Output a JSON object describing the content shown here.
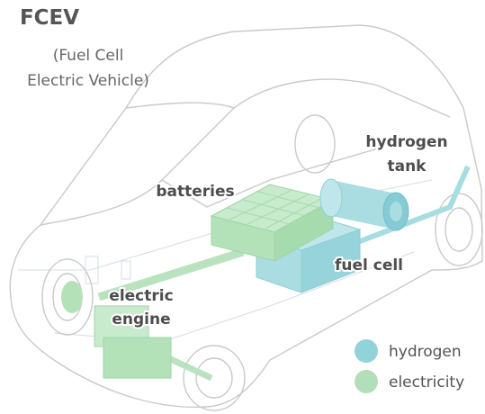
{
  "header": {
    "title": "FCEV",
    "subtitle": [
      "(Fuel Cell",
      "Electric Vehicle)"
    ]
  },
  "labels": [
    {
      "lines": [
        "hydrogen",
        "tank"
      ]
    },
    {
      "lines": [
        "batteries"
      ]
    },
    {
      "lines": [
        "fuel cell"
      ]
    },
    {
      "lines": [
        "electric",
        "engine"
      ]
    }
  ],
  "legend": [
    {
      "label": "hydrogen",
      "color": "#7ccbd2"
    },
    {
      "label": "electricity",
      "color": "#a4d9ad"
    }
  ]
}
